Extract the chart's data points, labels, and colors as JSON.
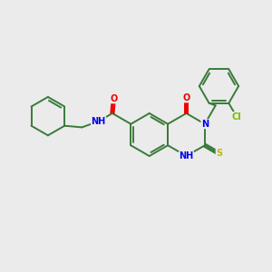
{
  "bg_color": "#ebebeb",
  "bond_color": "#3a7a3a",
  "bond_width": 1.4,
  "atom_colors": {
    "N": "#0000ee",
    "O": "#ee0000",
    "S": "#bbbb00",
    "Cl": "#77bb00",
    "C": "#3a7a3a"
  },
  "font_size": 7.0,
  "fig_size": [
    3.0,
    3.0
  ],
  "dpi": 100
}
